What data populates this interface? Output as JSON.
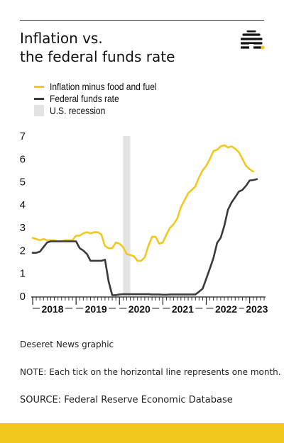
{
  "header": {
    "title_line1": "Inflation vs.",
    "title_line2": "the federal funds rate",
    "logo_icon": "beehive-icon"
  },
  "colors": {
    "inflation": "#f2c81f",
    "fed": "#3a3a3a",
    "recession": "#e3e3e3",
    "accent_bar": "#f2c81f"
  },
  "chart_data": {
    "type": "line",
    "ylim": [
      0,
      7
    ],
    "yticks": [
      "0",
      "1",
      "2",
      "3",
      "4",
      "5",
      "6",
      "7"
    ],
    "x_start": "2018-01",
    "x_end": "2023-05",
    "year_labels": [
      "2018",
      "2019",
      "2020",
      "2021",
      "2022",
      "2023"
    ],
    "recession": {
      "start": "2020-02",
      "end": "2020-04",
      "name": "U.S. recession"
    },
    "series": [
      {
        "name": "Inflation minus food and fuel",
        "values": [
          2.55,
          2.5,
          2.45,
          2.5,
          2.45,
          2.45,
          2.45,
          2.4,
          2.4,
          2.45,
          2.45,
          2.45,
          2.65,
          2.65,
          2.75,
          2.8,
          2.75,
          2.8,
          2.8,
          2.7,
          2.2,
          2.1,
          2.1,
          2.35,
          2.3,
          2.15,
          1.85,
          1.8,
          1.75,
          1.55,
          1.55,
          1.7,
          2.2,
          2.6,
          2.6,
          2.3,
          2.35,
          2.7,
          3.0,
          3.15,
          3.4,
          3.9,
          4.2,
          4.5,
          4.65,
          4.8,
          5.2,
          5.5,
          5.7,
          6.0,
          6.35,
          6.4,
          6.55,
          6.6,
          6.5,
          6.55,
          6.45,
          6.3,
          6.0,
          5.7,
          5.55,
          5.45
        ]
      },
      {
        "name": "Federal funds rate",
        "values": [
          1.9,
          1.9,
          1.95,
          2.15,
          2.35,
          2.4,
          2.4,
          2.4,
          2.4,
          2.4,
          2.4,
          2.4,
          2.4,
          2.1,
          2.0,
          1.85,
          1.55,
          1.55,
          1.55,
          1.55,
          1.6,
          0.65,
          0.05,
          0.05,
          0.08,
          0.09,
          0.09,
          0.09,
          0.09,
          0.09,
          0.09,
          0.09,
          0.09,
          0.08,
          0.08,
          0.08,
          0.07,
          0.07,
          0.08,
          0.08,
          0.08,
          0.08,
          0.08,
          0.08,
          0.08,
          0.08,
          0.2,
          0.33,
          0.77,
          1.21,
          1.68,
          2.33,
          2.56,
          3.08,
          3.78,
          4.1,
          4.33,
          4.57,
          4.65,
          4.83,
          5.06,
          5.08,
          5.12
        ]
      }
    ]
  },
  "footer": {
    "credit": "Deseret News graphic",
    "note": "NOTE: Each tick on the horizontal line represents one month.",
    "source": "SOURCE: Federal Reserve Economic Database"
  }
}
